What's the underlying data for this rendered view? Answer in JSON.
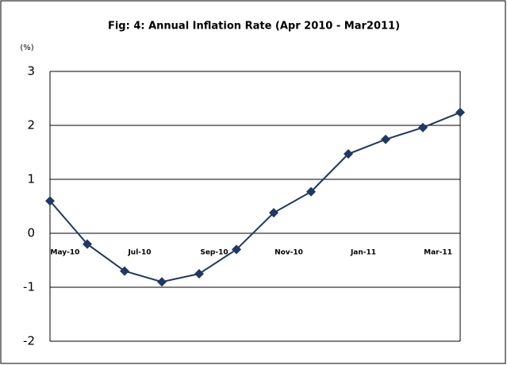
{
  "chart_data": {
    "type": "line",
    "title": "Fig: 4: Annual Inflation Rate (Apr 2010 - Mar2011)",
    "y_unit": "(%)",
    "categories": [
      null,
      "May-10",
      null,
      "Jul-10",
      null,
      "Sep-10",
      null,
      "Nov-10",
      null,
      "Jan-11",
      null,
      "Mar-11"
    ],
    "series": [
      {
        "name": "Annual Inflation Rate",
        "color": "#1f3864",
        "values": [
          0.6,
          -0.2,
          -0.7,
          -0.9,
          -0.75,
          -0.3,
          0.38,
          0.77,
          1.47,
          1.74,
          1.96,
          2.24
        ]
      }
    ],
    "ylim": [
      -2,
      3
    ],
    "yticks": [
      -2,
      -1,
      0,
      1,
      2,
      3
    ],
    "grid": true,
    "legend": false
  }
}
